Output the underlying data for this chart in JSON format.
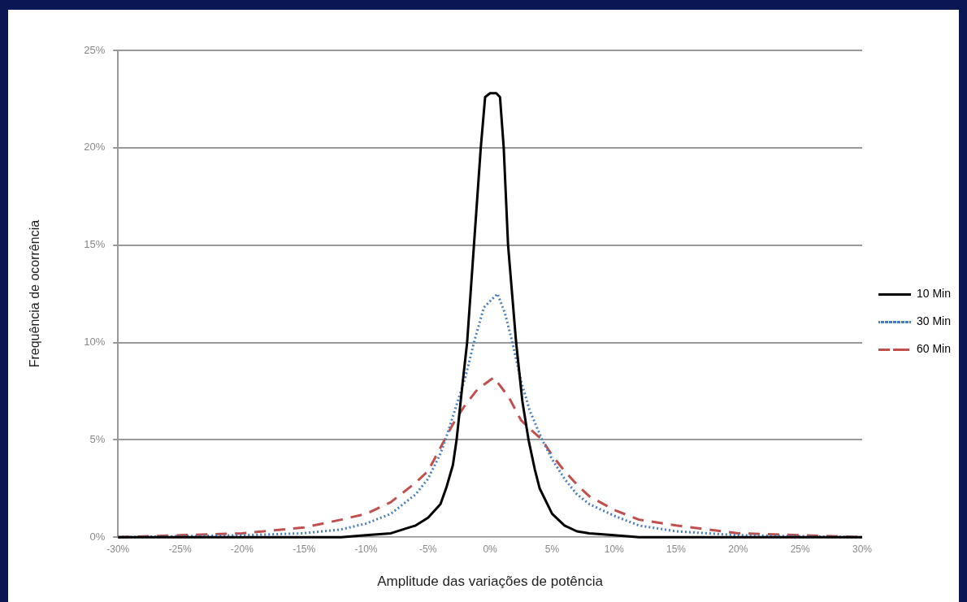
{
  "chart_data": {
    "type": "line",
    "xlabel": "Amplitude das variações de potência",
    "ylabel": "Frequência de ocorrência",
    "xlim": [
      -30,
      30
    ],
    "xticks": [
      {
        "value": -30,
        "label": "-30%"
      },
      {
        "value": -25,
        "label": "-25%"
      },
      {
        "value": -20,
        "label": "-20%"
      },
      {
        "value": -15,
        "label": "-15%"
      },
      {
        "value": -10,
        "label": "-10%"
      },
      {
        "value": -5,
        "label": "-5%"
      },
      {
        "value": 0,
        "label": "0%"
      },
      {
        "value": 5,
        "label": "5%"
      },
      {
        "value": 10,
        "label": "10%"
      },
      {
        "value": 15,
        "label": "15%"
      },
      {
        "value": 20,
        "label": "20%"
      },
      {
        "value": 25,
        "label": "25%"
      },
      {
        "value": 30,
        "label": "30%"
      }
    ],
    "ylim": [
      0,
      25
    ],
    "yticks": [
      {
        "value": 0,
        "label": "0%"
      },
      {
        "value": 5,
        "label": "5%"
      },
      {
        "value": 10,
        "label": "10%"
      },
      {
        "value": 15,
        "label": "15%"
      },
      {
        "value": 20,
        "label": "20%"
      },
      {
        "value": 25,
        "label": "25%"
      }
    ],
    "grid": "y",
    "legend": "right",
    "marker": "none",
    "series": [
      {
        "name": "10 Min",
        "color": "#000000",
        "line_style": "solid",
        "x": [
          -30,
          -20,
          -12,
          -10,
          -8,
          -6,
          -5,
          -4,
          -3.5,
          -3,
          -2.7,
          -2.2,
          -1.85,
          -1.3,
          -0.75,
          -0.4,
          0,
          0.5,
          0.8,
          1.1,
          1.45,
          2.1,
          2.6,
          3.1,
          3.6,
          4,
          5,
          6,
          7,
          8,
          10,
          12,
          15,
          30
        ],
        "values": [
          0,
          0,
          0,
          0.1,
          0.2,
          0.6,
          1.0,
          1.7,
          2.6,
          3.7,
          5,
          8,
          10,
          15,
          20,
          22.6,
          22.8,
          22.8,
          22.6,
          20,
          15,
          10,
          7,
          5,
          3.5,
          2.5,
          1.2,
          0.6,
          0.3,
          0.2,
          0.1,
          0,
          0,
          0
        ]
      },
      {
        "name": "30 Min",
        "color": "#4a7ebb",
        "line_style": "dotted",
        "x": [
          -30,
          -20,
          -15,
          -12,
          -10,
          -8,
          -6,
          -5,
          -4,
          -3.6,
          -3,
          -2,
          -1.3,
          -0.5,
          0.6,
          1.2,
          1.8,
          2.5,
          3.2,
          4.2,
          5,
          6,
          7,
          8,
          10,
          12,
          15,
          20,
          30
        ],
        "values": [
          0,
          0.1,
          0.2,
          0.4,
          0.7,
          1.2,
          2.2,
          3.0,
          4.3,
          5,
          6.2,
          8.2,
          10,
          11.8,
          12.5,
          11.5,
          10,
          8,
          6.5,
          5,
          4,
          3,
          2.2,
          1.7,
          1.1,
          0.6,
          0.3,
          0.1,
          0
        ]
      },
      {
        "name": "60 Min",
        "color": "#c0504d",
        "line_style": "dashed",
        "x": [
          -30,
          -25,
          -20,
          -15,
          -12,
          -10,
          -8,
          -6,
          -5,
          -4,
          -3,
          -2,
          -1,
          0.3,
          1.5,
          2.5,
          3.5,
          4.2,
          5,
          6,
          7,
          8,
          10,
          12,
          15,
          20,
          25,
          30
        ],
        "values": [
          0,
          0.1,
          0.2,
          0.5,
          0.9,
          1.2,
          1.8,
          2.8,
          3.4,
          4.6,
          5.8,
          6.8,
          7.6,
          8.2,
          7.2,
          6,
          5.4,
          5,
          4.2,
          3.4,
          2.7,
          2.1,
          1.4,
          0.9,
          0.6,
          0.2,
          0.1,
          0
        ]
      }
    ]
  }
}
